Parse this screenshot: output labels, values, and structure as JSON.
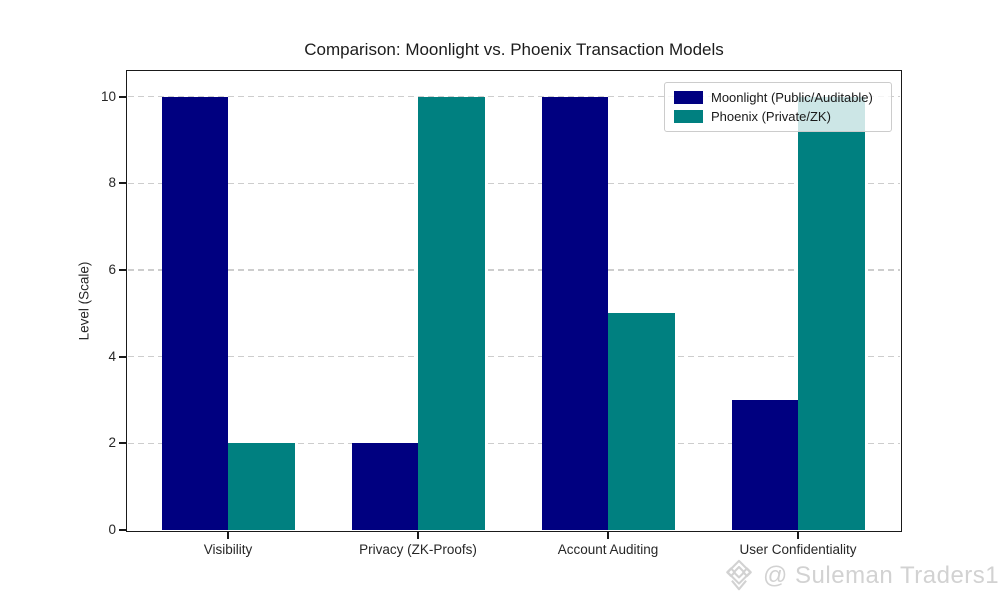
{
  "chart_data": {
    "type": "bar",
    "title": "Comparison: Moonlight vs. Phoenix Transaction Models",
    "categories": [
      "Visibility",
      "Privacy (ZK-Proofs)",
      "Account Auditing",
      "User Confidentiality"
    ],
    "series": [
      {
        "name": "Moonlight (Public/Auditable)",
        "color": "#000080",
        "values": [
          10,
          2,
          10,
          3
        ]
      },
      {
        "name": "Phoenix (Private/ZK)",
        "color": "#008080",
        "values": [
          2,
          10,
          5,
          10
        ]
      }
    ],
    "xlabel": "",
    "ylabel": "Level (Scale)",
    "yticks": [
      0,
      2,
      4,
      6,
      8,
      10
    ],
    "ylim": [
      0,
      10.57
    ],
    "bar_width": 0.35,
    "grid": "horizontal-dashed",
    "legend_position": "upper-right"
  },
  "watermark": {
    "icon": "gem-diamond-icon",
    "text": "@ Suleman Traders1"
  },
  "colors": {
    "series_navy": "#000080",
    "series_teal": "#008080",
    "grid": "#cdcdcd",
    "spine": "#1a1a1a",
    "text": "#262626",
    "legend_border": "#cccccc",
    "watermark": "#d2d2d2",
    "background": "#ffffff"
  }
}
